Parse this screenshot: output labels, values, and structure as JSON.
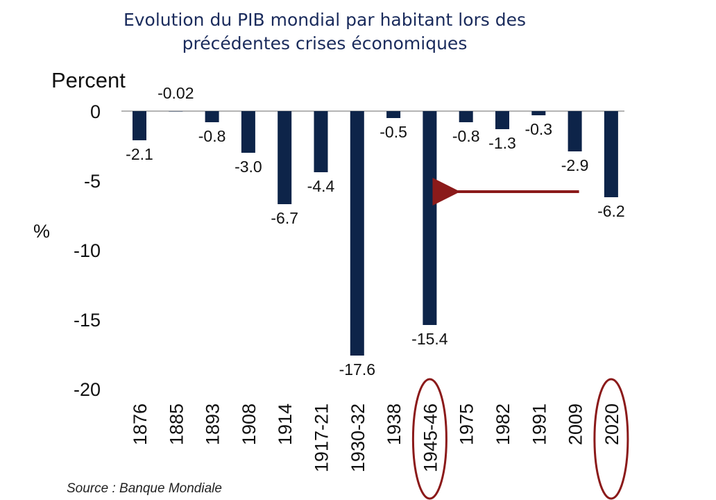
{
  "chart_data": {
    "type": "bar",
    "title": [
      "Evolution du PIB mondial par habitant lors des",
      "précédentes crises économiques"
    ],
    "unit_label": "Percent",
    "ylabel": "%",
    "ylim": [
      -20,
      0
    ],
    "yticks": [
      0,
      -5,
      -10,
      -15,
      -20
    ],
    "categories": [
      "1876",
      "1885",
      "1893",
      "1908",
      "1914",
      "1917-21",
      "1930-32",
      "1938",
      "1945-46",
      "1975",
      "1982",
      "1991",
      "2009",
      "2020"
    ],
    "values": [
      -2.1,
      -0.02,
      -0.8,
      -3.0,
      -6.7,
      -4.4,
      -17.6,
      -0.5,
      -15.4,
      -0.8,
      -1.3,
      -0.3,
      -2.9,
      -6.2
    ],
    "value_labels": [
      "-2.1",
      "-0.02",
      "-0.8",
      "-3.0",
      "-6.7",
      "-4.4",
      "-17.6",
      "-0.5",
      "-15.4",
      "-0.8",
      "-1.3",
      "-0.3",
      "-2.9",
      "-6.2"
    ],
    "highlighted_categories": [
      "1945-46",
      "2020"
    ],
    "annotation": "arrow from 2009 pointing left toward 1945-46",
    "bar_color": "#0d2449",
    "highlight_color": "#8b1a1a",
    "grid": false
  },
  "source": "Source : Banque Mondiale"
}
